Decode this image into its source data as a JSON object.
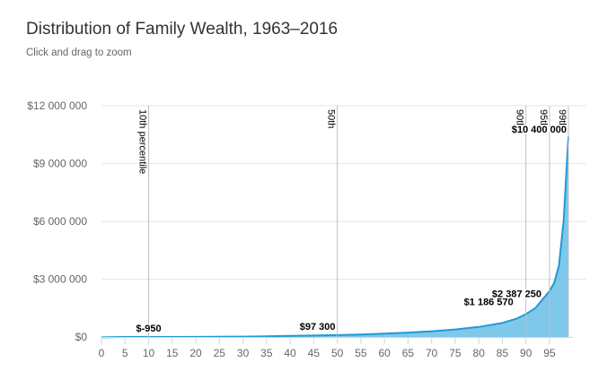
{
  "chart_data": {
    "type": "area",
    "title": "Distribution of Family Wealth, 1963–2016",
    "subtitle": "Click and drag to zoom",
    "xlabel": "",
    "ylabel": "",
    "xlim": [
      0,
      99
    ],
    "ylim": [
      0,
      12000000
    ],
    "x_ticks": [
      0,
      5,
      10,
      15,
      20,
      25,
      30,
      35,
      40,
      45,
      50,
      55,
      60,
      65,
      70,
      75,
      80,
      85,
      90,
      95
    ],
    "y_ticks": [
      {
        "value": 0,
        "label": "$0"
      },
      {
        "value": 3000000,
        "label": "$3 000 000"
      },
      {
        "value": 6000000,
        "label": "$6 000 000"
      },
      {
        "value": 9000000,
        "label": "$9 000 000"
      },
      {
        "value": 12000000,
        "label": "$12 000 000"
      }
    ],
    "grid": true,
    "series": [
      {
        "color": "#1f9ad6",
        "fill": "#7ec8ea",
        "points": [
          [
            0,
            -20000
          ],
          [
            5,
            0
          ],
          [
            10,
            -950
          ],
          [
            15,
            2000
          ],
          [
            20,
            6000
          ],
          [
            25,
            12000
          ],
          [
            30,
            20000
          ],
          [
            35,
            35000
          ],
          [
            40,
            55000
          ],
          [
            45,
            75000
          ],
          [
            50,
            97300
          ],
          [
            55,
            130000
          ],
          [
            60,
            175000
          ],
          [
            65,
            230000
          ],
          [
            70,
            300000
          ],
          [
            75,
            390000
          ],
          [
            80,
            520000
          ],
          [
            85,
            730000
          ],
          [
            88,
            950000
          ],
          [
            90,
            1186570
          ],
          [
            92,
            1500000
          ],
          [
            95,
            2387250
          ],
          [
            96,
            2800000
          ],
          [
            97,
            3700000
          ],
          [
            98,
            6000000
          ],
          [
            99,
            10400000
          ]
        ]
      }
    ],
    "percentile_lines": [
      {
        "x": 10,
        "label": "10th percentile"
      },
      {
        "x": 50,
        "label": "50th"
      },
      {
        "x": 90,
        "label": "90th"
      },
      {
        "x": 95,
        "label": "95th"
      },
      {
        "x": 99,
        "label": "99th"
      }
    ],
    "data_labels": [
      {
        "x": 10,
        "y": -950,
        "label": "$-950"
      },
      {
        "x": 50,
        "y": 97300,
        "label": "$97 300"
      },
      {
        "x": 90,
        "y": 1186570,
        "label": "$1 186 570"
      },
      {
        "x": 95,
        "y": 2387250,
        "label": "$2 387 250"
      },
      {
        "x": 99,
        "y": 10400000,
        "label": "$10 400 000"
      }
    ]
  }
}
